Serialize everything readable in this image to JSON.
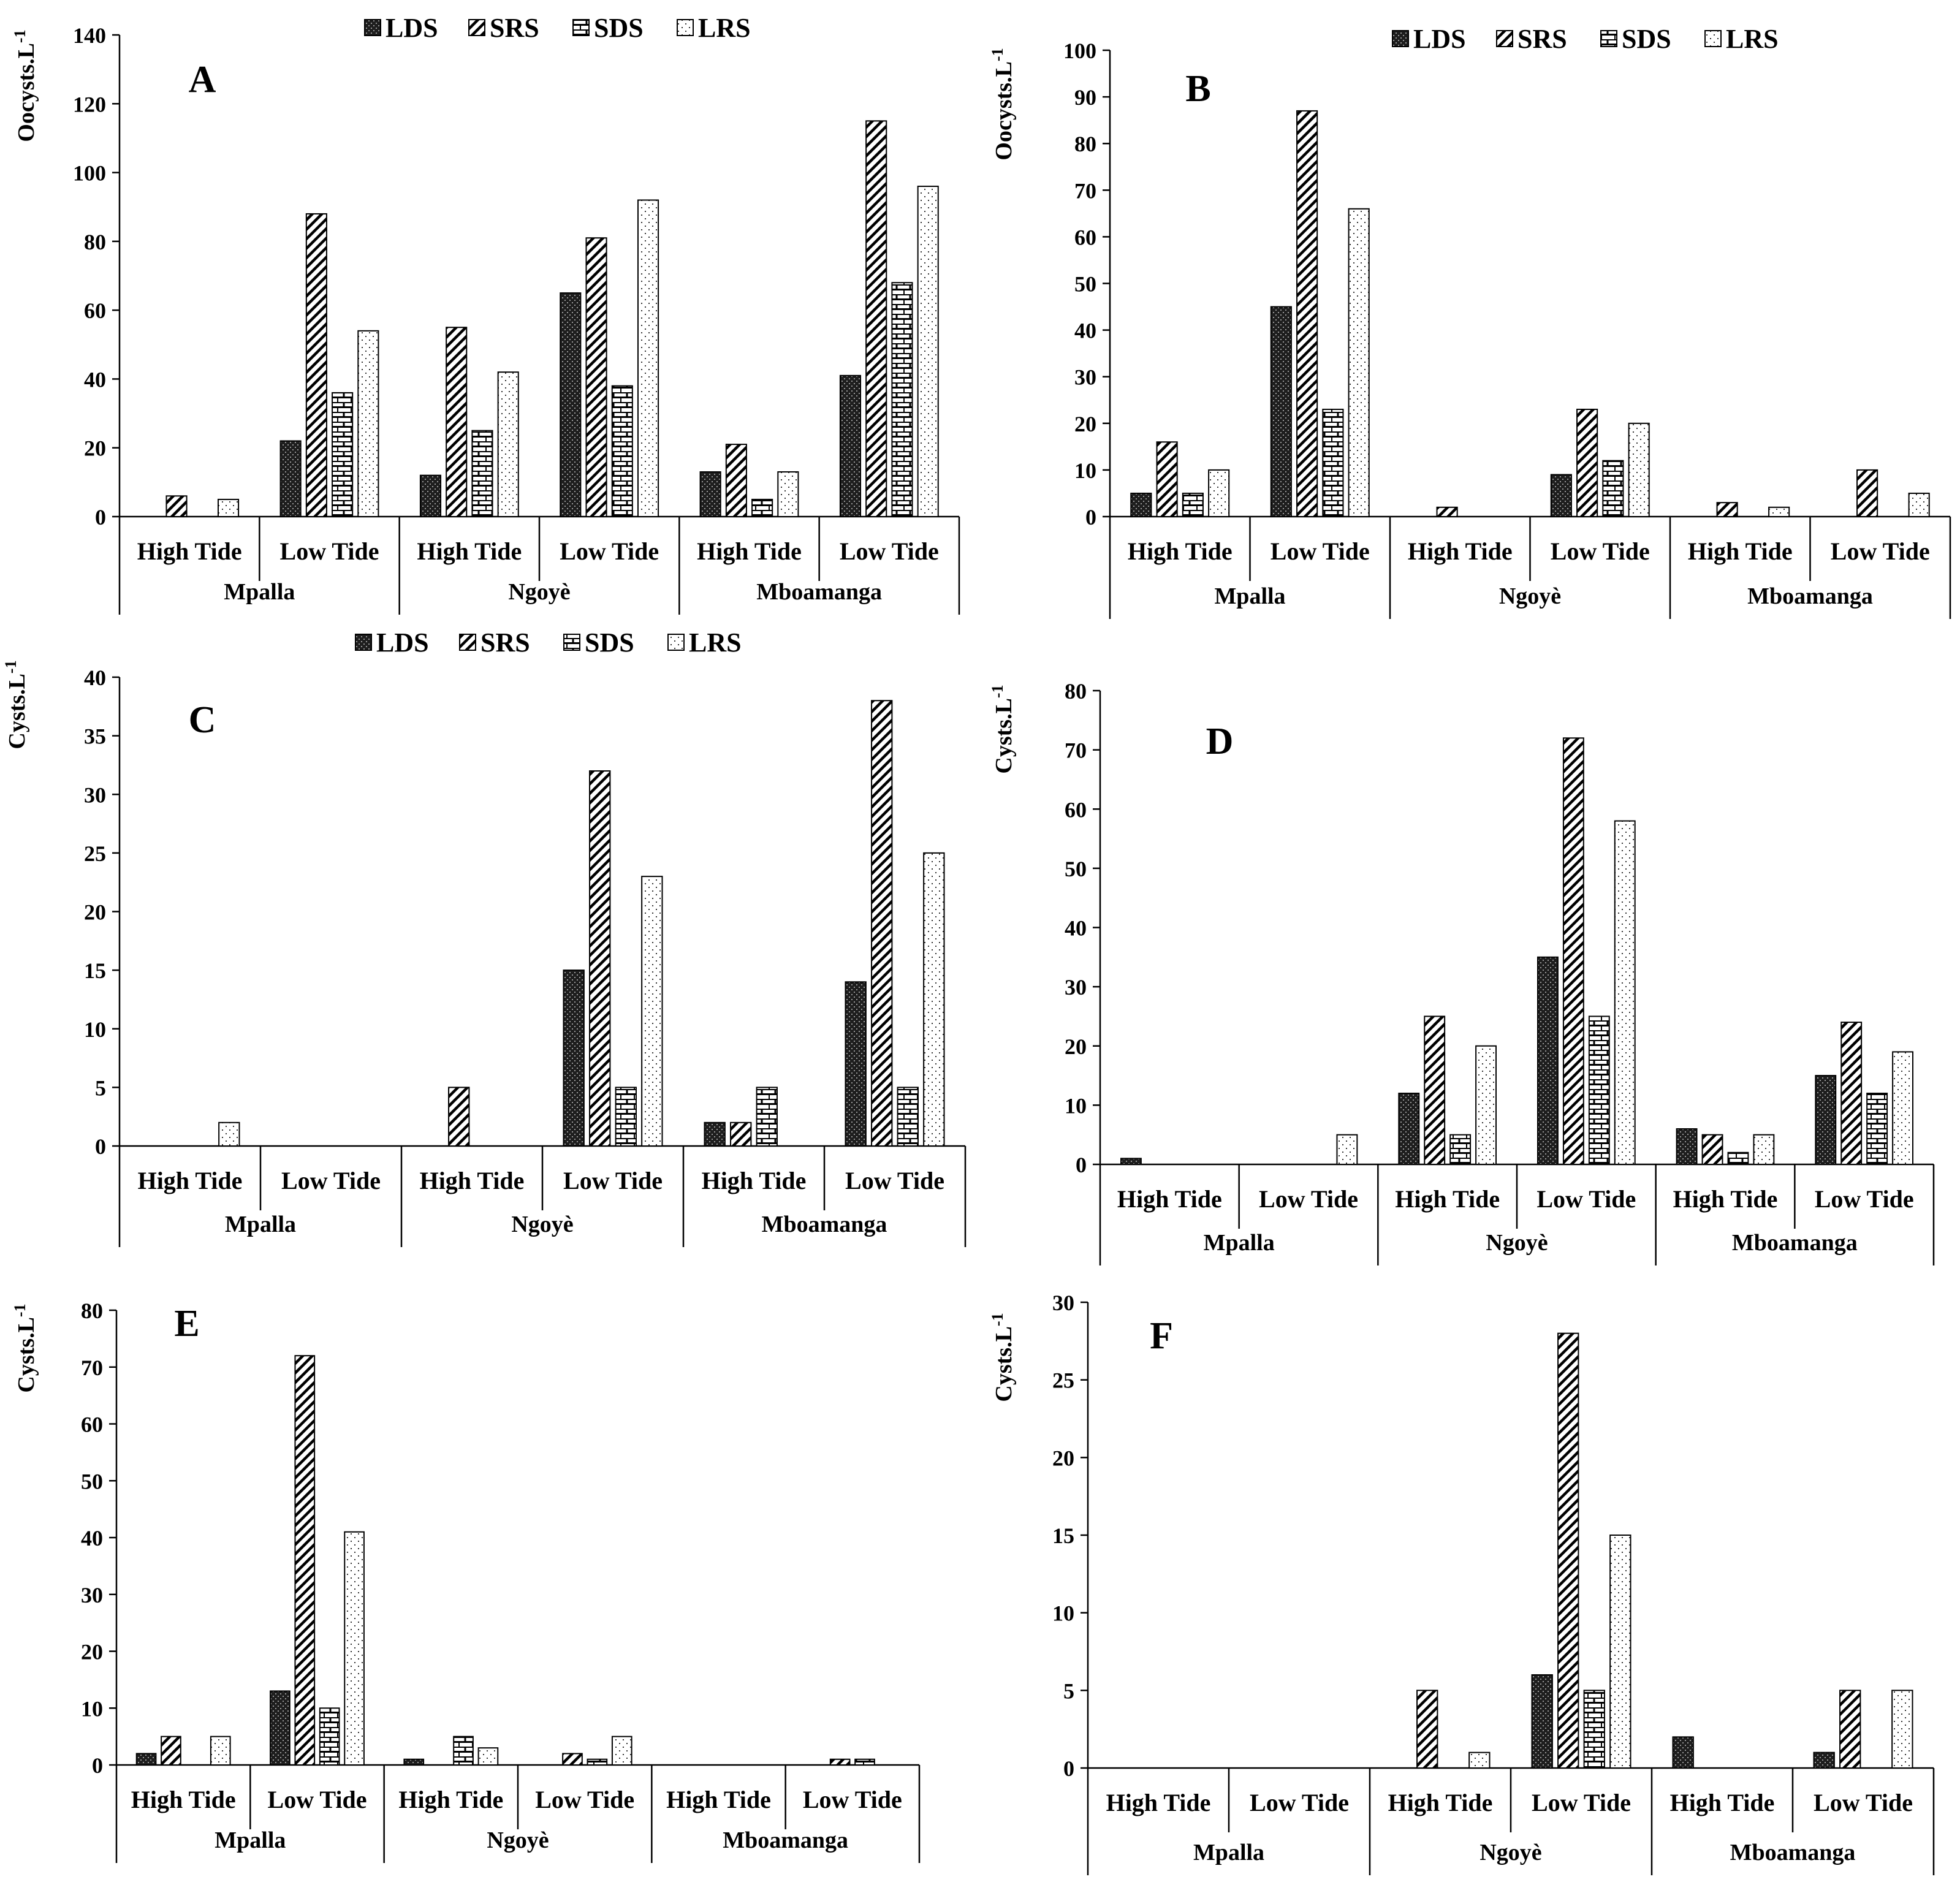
{
  "chart_data": [
    {
      "type": "bar",
      "panel": "A",
      "ylabel": "Oocysts.L-1",
      "ylim": [
        0,
        140
      ],
      "yticks": [
        0,
        20,
        40,
        60,
        80,
        100,
        120,
        140
      ],
      "show_legend": true,
      "categories": [
        "High Tide",
        "Low Tide",
        "High Tide",
        "Low Tide",
        "High Tide",
        "Low Tide"
      ],
      "groups": [
        "Mpalla",
        "Ngoyè",
        "Mboamanga"
      ],
      "series": [
        {
          "name": "LDS",
          "values": [
            0,
            22,
            12,
            65,
            13,
            41
          ]
        },
        {
          "name": "SRS",
          "values": [
            6,
            88,
            55,
            81,
            21,
            115
          ]
        },
        {
          "name": "SDS",
          "values": [
            0,
            36,
            25,
            38,
            5,
            68
          ]
        },
        {
          "name": "LRS",
          "values": [
            5,
            54,
            42,
            92,
            13,
            96
          ]
        }
      ]
    },
    {
      "type": "bar",
      "panel": "B",
      "ylabel": "Oocysts.L-1",
      "ylim": [
        0,
        100
      ],
      "yticks": [
        0,
        10,
        20,
        30,
        40,
        50,
        60,
        70,
        80,
        90,
        100
      ],
      "show_legend": true,
      "categories": [
        "High Tide",
        "Low Tide",
        "High Tide",
        "Low Tide",
        "High Tide",
        "Low Tide"
      ],
      "groups": [
        "Mpalla",
        "Ngoyè",
        "Mboamanga"
      ],
      "series": [
        {
          "name": "LDS",
          "values": [
            5,
            45,
            0,
            9,
            0,
            0
          ]
        },
        {
          "name": "SRS",
          "values": [
            16,
            87,
            2,
            23,
            3,
            10
          ]
        },
        {
          "name": "SDS",
          "values": [
            5,
            23,
            0,
            12,
            0,
            0
          ]
        },
        {
          "name": "LRS",
          "values": [
            10,
            66,
            0,
            20,
            2,
            5
          ]
        }
      ]
    },
    {
      "type": "bar",
      "panel": "C",
      "ylabel": "Cysts.L-1",
      "ylim": [
        0,
        40
      ],
      "yticks": [
        0,
        5,
        10,
        15,
        20,
        25,
        30,
        35,
        40
      ],
      "show_legend": true,
      "categories": [
        "High Tide",
        "Low Tide",
        "High Tide",
        "Low Tide",
        "High Tide",
        "Low Tide"
      ],
      "groups": [
        "Mpalla",
        "Ngoyè",
        "Mboamanga"
      ],
      "series": [
        {
          "name": "LDS",
          "values": [
            0,
            0,
            0,
            15,
            2,
            14
          ]
        },
        {
          "name": "SRS",
          "values": [
            0,
            0,
            5,
            32,
            2,
            38
          ]
        },
        {
          "name": "SDS",
          "values": [
            0,
            0,
            0,
            5,
            5,
            5
          ]
        },
        {
          "name": "LRS",
          "values": [
            2,
            0,
            0,
            23,
            0,
            25
          ]
        }
      ]
    },
    {
      "type": "bar",
      "panel": "D",
      "ylabel": "Cysts.L-1",
      "ylim": [
        0,
        80
      ],
      "yticks": [
        0,
        10,
        20,
        30,
        40,
        50,
        60,
        70,
        80
      ],
      "show_legend": false,
      "categories": [
        "High Tide",
        "Low Tide",
        "High Tide",
        "Low Tide",
        "High Tide",
        "Low Tide"
      ],
      "groups": [
        "Mpalla",
        "Ngoyè",
        "Mboamanga"
      ],
      "series": [
        {
          "name": "LDS",
          "values": [
            1,
            0,
            12,
            35,
            6,
            15
          ]
        },
        {
          "name": "SRS",
          "values": [
            0,
            0,
            25,
            72,
            5,
            24
          ]
        },
        {
          "name": "SDS",
          "values": [
            0,
            0,
            5,
            25,
            2,
            12
          ]
        },
        {
          "name": "LRS",
          "values": [
            0,
            5,
            20,
            58,
            5,
            19
          ]
        }
      ]
    },
    {
      "type": "bar",
      "panel": "E",
      "ylabel": "Cysts.L-1",
      "ylim": [
        0,
        80
      ],
      "yticks": [
        0,
        10,
        20,
        30,
        40,
        50,
        60,
        70,
        80
      ],
      "show_legend": false,
      "categories": [
        "High Tide",
        "Low Tide",
        "High Tide",
        "Low Tide",
        "High Tide",
        "Low Tide"
      ],
      "groups": [
        "Mpalla",
        "Ngoyè",
        "Mboamanga"
      ],
      "series": [
        {
          "name": "LDS",
          "values": [
            2,
            13,
            1,
            0,
            0,
            0
          ]
        },
        {
          "name": "SRS",
          "values": [
            5,
            72,
            0,
            2,
            0,
            1
          ]
        },
        {
          "name": "SDS",
          "values": [
            0,
            10,
            5,
            1,
            0,
            1
          ]
        },
        {
          "name": "LRS",
          "values": [
            5,
            41,
            3,
            5,
            0,
            0
          ]
        }
      ]
    },
    {
      "type": "bar",
      "panel": "F",
      "ylabel": "Cysts.L-1",
      "ylim": [
        0,
        30
      ],
      "yticks": [
        0,
        5,
        10,
        15,
        20,
        25,
        30
      ],
      "show_legend": false,
      "categories": [
        "High Tide",
        "Low Tide",
        "High Tide",
        "Low Tide",
        "High Tide",
        "Low Tide"
      ],
      "groups": [
        "Mpalla",
        "Ngoyè",
        "Mboamanga"
      ],
      "series": [
        {
          "name": "LDS",
          "values": [
            0,
            0,
            0,
            6,
            2,
            1
          ]
        },
        {
          "name": "SRS",
          "values": [
            0,
            0,
            5,
            28,
            0,
            5
          ]
        },
        {
          "name": "SDS",
          "values": [
            0,
            0,
            0,
            5,
            0,
            0
          ]
        },
        {
          "name": "LRS",
          "values": [
            0,
            0,
            1,
            15,
            0,
            5
          ]
        }
      ]
    }
  ]
}
